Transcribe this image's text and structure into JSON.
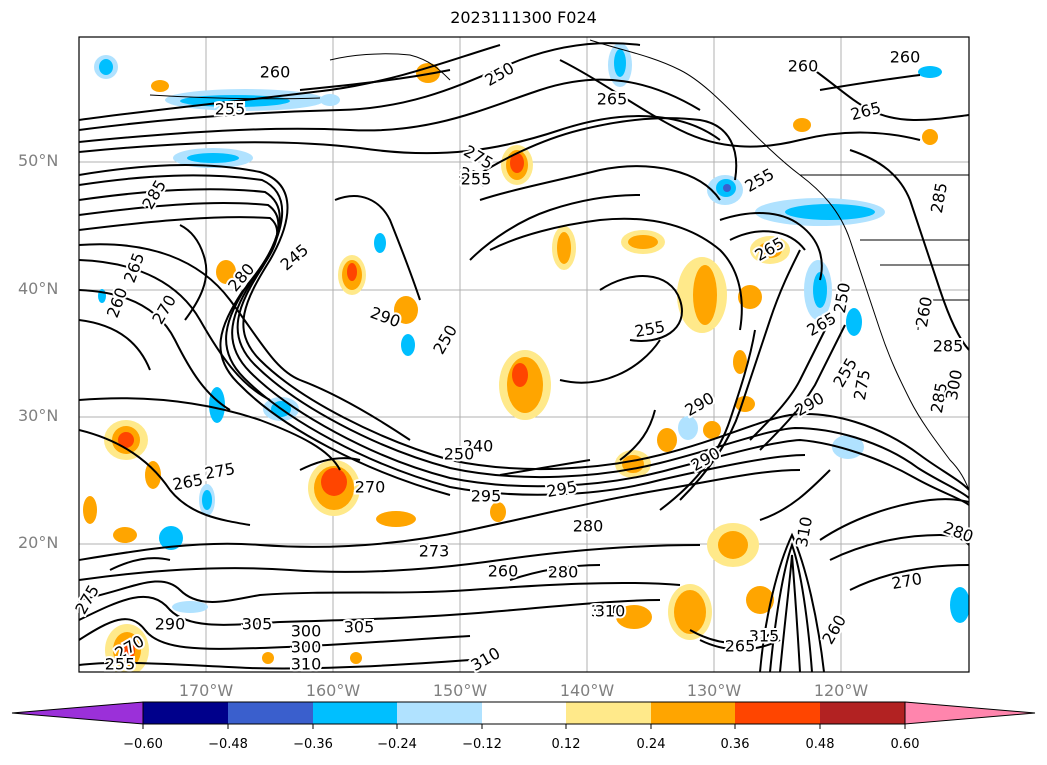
{
  "title": "2023111300 F024",
  "latitude_labels": [
    "50°N",
    "40°N",
    "30°N",
    "20°N"
  ],
  "longitude_labels": [
    "170°W",
    "160°W",
    "150°W",
    "140°W",
    "130°W",
    "120°W"
  ],
  "colorbar": {
    "tick_labels": [
      "−0.60",
      "−0.48",
      "−0.36",
      "−0.24",
      "−0.12",
      "0.12",
      "0.24",
      "0.36",
      "0.48",
      "0.60"
    ],
    "colors": [
      "#9b30d9",
      "#00008b",
      "#3a5fcd",
      "#00bfff",
      "#b0e2ff",
      "#ffffff",
      "#ffe98a",
      "#ffa500",
      "#ff4500",
      "#b22222",
      "#ff85ad"
    ]
  },
  "contour_labels": [
    "260",
    "255",
    "250",
    "265",
    "260",
    "260",
    "265",
    "285",
    "265",
    "260",
    "275",
    "270",
    "270",
    "280",
    "285",
    "255",
    "265",
    "255",
    "245",
    "250",
    "250",
    "260",
    "290",
    "255",
    "240",
    "250",
    "265",
    "275",
    "270",
    "295",
    "295",
    "290",
    "290",
    "290",
    "280",
    "273",
    "280",
    "260",
    "275",
    "285",
    "280",
    "270",
    "275",
    "290",
    "305",
    "300",
    "300",
    "300",
    "310",
    "305",
    "310",
    "310",
    "285",
    "300",
    "315",
    "265",
    "255",
    "260",
    "270",
    "255",
    "265",
    "310"
  ]
}
